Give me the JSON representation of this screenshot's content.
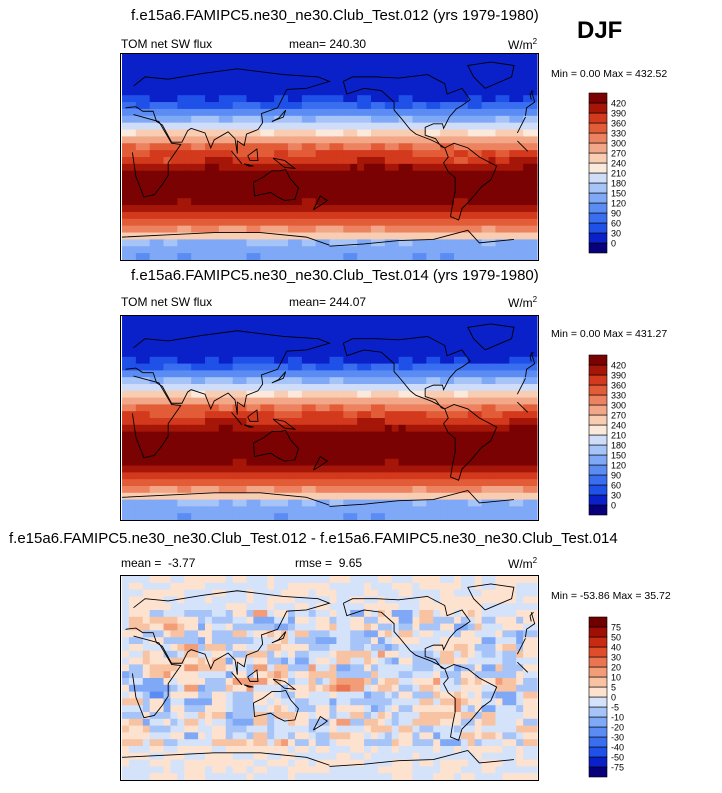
{
  "season": "DJF",
  "panels": [
    {
      "title": "f.e15a6.FAMIPC5.ne30_ne30.Club_Test.012 (yrs 1979-1980)",
      "variable": "TOM net SW flux",
      "stat_label": "mean=",
      "stat_value": "240.30",
      "units": "W/m",
      "units_exp": "2",
      "minmax": "Min =   0.00 Max = 432.52"
    },
    {
      "title": "f.e15a6.FAMIPC5.ne30_ne30.Club_Test.014 (yrs 1979-1980)",
      "variable": "TOM net SW flux",
      "stat_label": "mean=",
      "stat_value": "244.07",
      "units": "W/m",
      "units_exp": "2",
      "minmax": "Min =   0.00 Max = 431.27"
    },
    {
      "title": "f.e15a6.FAMIPC5.ne30_ne30.Club_Test.012 - f.e15a6.FAMIPC5.ne30_ne30.Club_Test.014",
      "mean_label": "mean =",
      "mean_value": "-3.77",
      "rmse_label": "rmse =",
      "rmse_value": "9.65",
      "units": "W/m",
      "units_exp": "2",
      "minmax": "Min = -53.86 Max =  35.72"
    }
  ],
  "chart_data": [
    {
      "type": "heatmap",
      "title": "f.e15a6.FAMIPC5.ne30_ne30.Club_Test.012 (yrs 1979-1980)",
      "variable": "TOM net SW flux",
      "mean": 240.3,
      "min": 0.0,
      "max": 432.52,
      "units": "W/m2",
      "levels": [
        0,
        30,
        60,
        90,
        120,
        150,
        180,
        210,
        240,
        270,
        300,
        330,
        360,
        390,
        420
      ]
    },
    {
      "type": "heatmap",
      "title": "f.e15a6.FAMIPC5.ne30_ne30.Club_Test.014 (yrs 1979-1980)",
      "variable": "TOM net SW flux",
      "mean": 244.07,
      "min": 0.0,
      "max": 431.27,
      "units": "W/m2",
      "levels": [
        0,
        30,
        60,
        90,
        120,
        150,
        180,
        210,
        240,
        270,
        300,
        330,
        360,
        390,
        420
      ]
    },
    {
      "type": "heatmap",
      "title": "f.e15a6.FAMIPC5.ne30_ne30.Club_Test.012 - f.e15a6.FAMIPC5.ne30_ne30.Club_Test.014",
      "mean": -3.77,
      "rmse": 9.65,
      "min": -53.86,
      "max": 35.72,
      "units": "W/m2",
      "levels": [
        -75,
        -50,
        -40,
        -30,
        -20,
        -10,
        -5,
        0,
        5,
        10,
        20,
        30,
        40,
        50,
        75
      ]
    }
  ],
  "colors": {
    "abs_scale": [
      "#08007a",
      "#0a20c8",
      "#1f50e8",
      "#3a6ef0",
      "#5a8cf4",
      "#7fa8f6",
      "#a6c4f8",
      "#cfddf9",
      "#fbe9dc",
      "#f8cdb2",
      "#f2a888",
      "#ec825f",
      "#e35c38",
      "#d3391c",
      "#a51608",
      "#7a0203"
    ],
    "diff_scale": [
      "#08007a",
      "#0a20c8",
      "#1f50e8",
      "#3a6ef0",
      "#5a8cf4",
      "#7fa8f6",
      "#a6c4f8",
      "#d4e2fa",
      "#fde2cf",
      "#f8c3a2",
      "#f29c78",
      "#eb7550",
      "#df4d2b",
      "#c92a12",
      "#a00f05",
      "#700000"
    ]
  }
}
